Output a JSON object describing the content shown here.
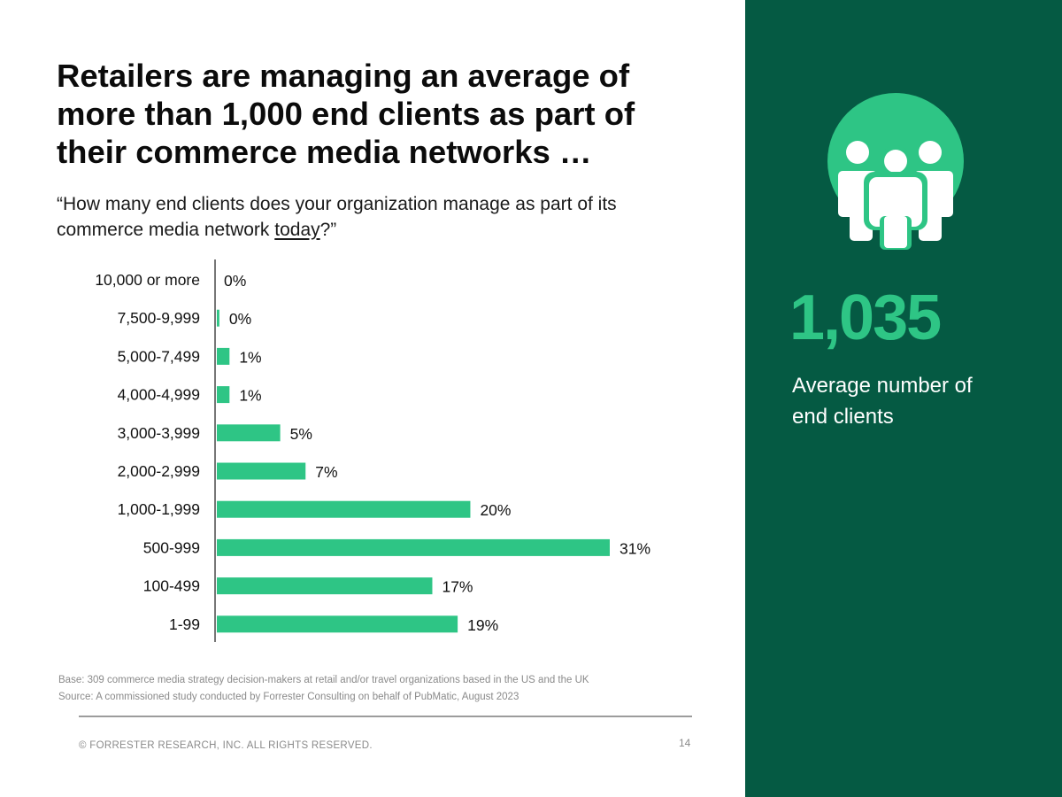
{
  "headline": "Retailers are managing an average of more than 1,000 end clients as part of their commerce media networks …",
  "question": {
    "before": "“How many end clients does your organization manage as part of its commerce media network ",
    "emphasis": "today",
    "after": "?”"
  },
  "chart_data": {
    "type": "bar",
    "orientation": "horizontal",
    "title": "",
    "xlabel": "",
    "ylabel": "",
    "categories": [
      "10,000 or more",
      "7,500-9,999",
      "5,000-7,499",
      "4,000-4,999",
      "3,000-3,999",
      "2,000-2,999",
      "1,000-1,999",
      "500-999",
      "100-499",
      "1-99"
    ],
    "values": [
      0,
      0.2,
      1,
      1,
      5,
      7,
      20,
      31,
      17,
      19
    ],
    "labels": [
      "0%",
      "0%",
      "1%",
      "1%",
      "5%",
      "7%",
      "20%",
      "31%",
      "17%",
      "19%"
    ],
    "xlim": [
      0,
      31
    ],
    "grid": false,
    "bar_color": "#2ec585"
  },
  "footnotes": {
    "base": "Base: 309 commerce media strategy decision-makers at retail and/or travel organizations based in the US and the UK",
    "source": "Source: A commissioned study conducted by Forrester Consulting on behalf of PubMatic, August 2023"
  },
  "copyright": "© FORRESTER RESEARCH, INC. ALL RIGHTS RESERVED.",
  "page_number": "14",
  "sidebar": {
    "icon": "people-group-icon",
    "stat_value": "1,035",
    "stat_label": "Average number of end clients"
  },
  "colors": {
    "panel": "#055a43",
    "accent": "#2ec585",
    "axis": "#777777"
  }
}
